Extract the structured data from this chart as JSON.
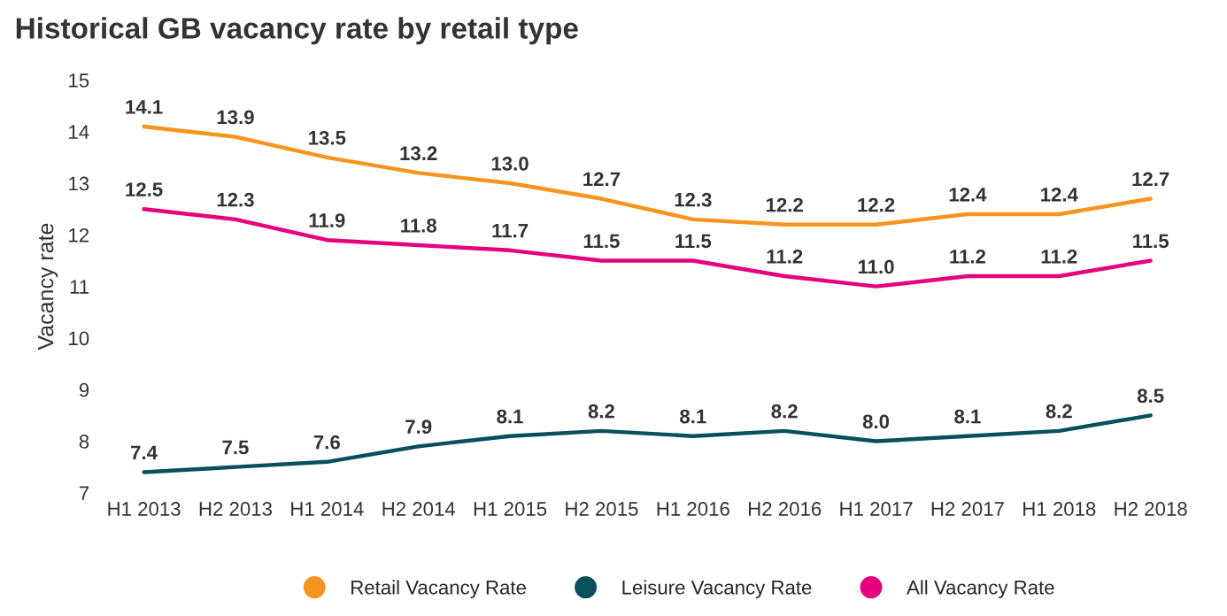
{
  "chart_data": {
    "type": "line",
    "title": "Historical GB vacancy rate by retail type",
    "ylabel": "Vacancy rate",
    "categories": [
      "H1 2013",
      "H2 2013",
      "H1 2014",
      "H2 2014",
      "H1 2015",
      "H2 2015",
      "H1 2016",
      "H2 2016",
      "H1 2017",
      "H2 2017",
      "H1 2018",
      "H2 2018"
    ],
    "series": [
      {
        "name": "Retail Vacancy Rate",
        "color": "#f7941d",
        "values": [
          14.1,
          13.9,
          13.5,
          13.2,
          13.0,
          12.7,
          12.3,
          12.2,
          12.2,
          12.4,
          12.4,
          12.7
        ],
        "value_labels": [
          "14.1",
          "13.9",
          "13.5",
          "13.2",
          "13.0",
          "12.7",
          "12.3",
          "12.2",
          "12.2",
          "12.4",
          "12.4",
          "12.7"
        ]
      },
      {
        "name": "Leisure Vacancy Rate",
        "color": "#0b4f5c",
        "values": [
          7.4,
          7.5,
          7.6,
          7.9,
          8.1,
          8.2,
          8.1,
          8.2,
          8.0,
          8.1,
          8.2,
          8.5
        ],
        "value_labels": [
          "7.4",
          "7.5",
          "7.6",
          "7.9",
          "8.1",
          "8.2",
          "8.1",
          "8.2",
          "8.0",
          "8.1",
          "8.2",
          "8.5"
        ]
      },
      {
        "name": "All Vacancy Rate",
        "color": "#e6007e",
        "values": [
          12.5,
          12.3,
          11.9,
          11.8,
          11.7,
          11.5,
          11.5,
          11.2,
          11.0,
          11.2,
          11.2,
          11.5
        ],
        "value_labels": [
          "12.5",
          "12.3",
          "11.9",
          "11.8",
          "11.7",
          "11.5",
          "11.5",
          "11.2",
          "11.0",
          "11.2",
          "11.2",
          "11.5"
        ]
      }
    ],
    "ylim": [
      7,
      15
    ],
    "yticks": [
      7,
      8,
      9,
      10,
      11,
      12,
      13,
      14,
      15
    ],
    "grid": false,
    "legend": "bottom",
    "marker": "none",
    "line_style": "solid"
  }
}
